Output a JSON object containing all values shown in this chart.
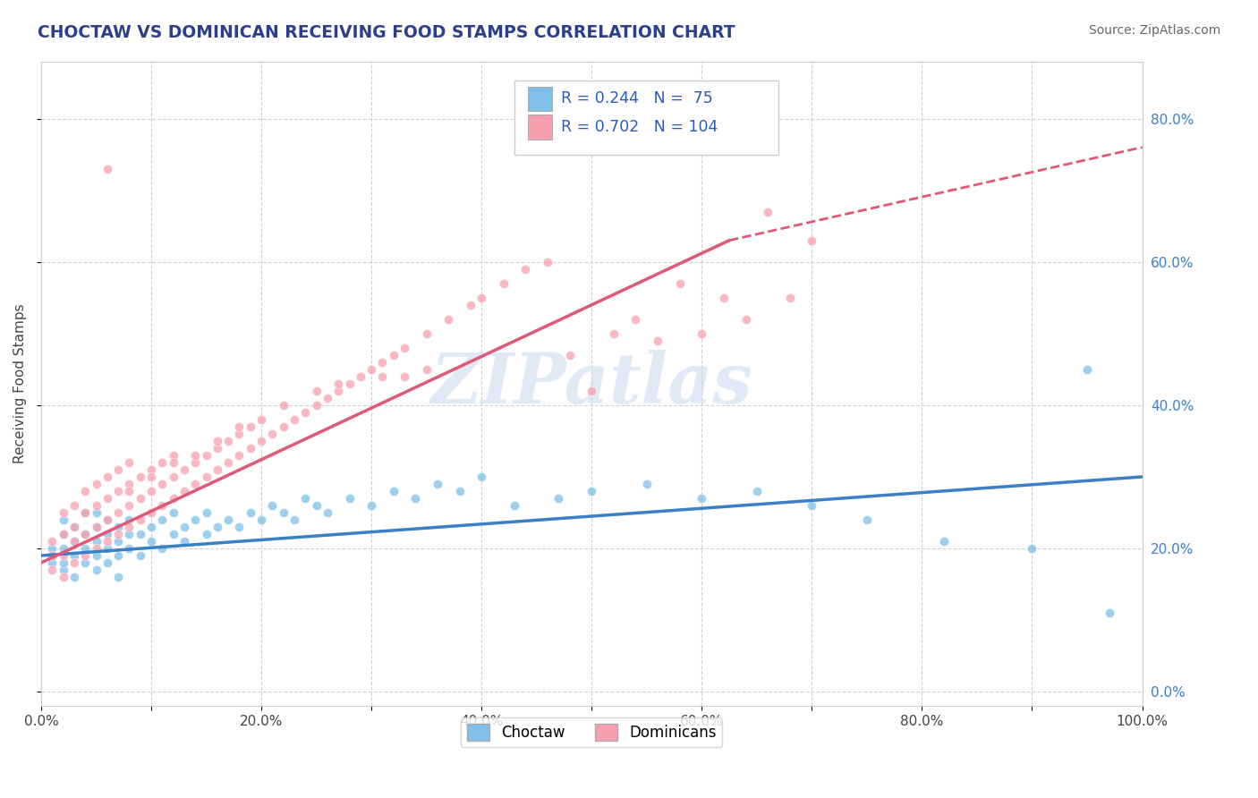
{
  "title": "CHOCTAW VS DOMINICAN RECEIVING FOOD STAMPS CORRELATION CHART",
  "source": "Source: ZipAtlas.com",
  "ylabel": "Receiving Food Stamps",
  "xlim": [
    0,
    1.0
  ],
  "ylim": [
    -0.02,
    0.88
  ],
  "xticks": [
    0.0,
    0.1,
    0.2,
    0.3,
    0.4,
    0.5,
    0.6,
    0.7,
    0.8,
    0.9,
    1.0
  ],
  "yticks": [
    0.0,
    0.2,
    0.4,
    0.6,
    0.8
  ],
  "xtick_labels": [
    "0.0%",
    "",
    "20.0%",
    "",
    "40.0%",
    "",
    "60.0%",
    "",
    "80.0%",
    "",
    "100.0%"
  ],
  "ytick_labels_right": [
    "0.0%",
    "20.0%",
    "40.0%",
    "60.0%",
    "80.0%"
  ],
  "choctaw_color": "#7fbfea",
  "dominican_color": "#f9a0b0",
  "choctaw_line_color": "#3b7fc4",
  "dominican_line_color": "#e05878",
  "dashed_line_color": "#e05878",
  "title_color": "#2c3e8c",
  "source_color": "#666666",
  "watermark_text": "ZIPatlas",
  "grid_color": "#cccccc",
  "choctaw_trendline": [
    0.0,
    1.0,
    0.19,
    0.3
  ],
  "dominican_trendline_solid": [
    0.0,
    0.625,
    0.18,
    0.63
  ],
  "dominican_trendline_dash": [
    0.625,
    1.0,
    0.63,
    0.76
  ],
  "choctaw_x": [
    0.01,
    0.01,
    0.01,
    0.02,
    0.02,
    0.02,
    0.02,
    0.02,
    0.03,
    0.03,
    0.03,
    0.03,
    0.04,
    0.04,
    0.04,
    0.04,
    0.05,
    0.05,
    0.05,
    0.05,
    0.05,
    0.06,
    0.06,
    0.06,
    0.06,
    0.07,
    0.07,
    0.07,
    0.07,
    0.08,
    0.08,
    0.08,
    0.09,
    0.09,
    0.1,
    0.1,
    0.11,
    0.11,
    0.12,
    0.12,
    0.13,
    0.13,
    0.14,
    0.15,
    0.15,
    0.16,
    0.17,
    0.18,
    0.19,
    0.2,
    0.21,
    0.22,
    0.23,
    0.24,
    0.25,
    0.26,
    0.28,
    0.3,
    0.32,
    0.34,
    0.36,
    0.38,
    0.4,
    0.43,
    0.47,
    0.5,
    0.55,
    0.6,
    0.65,
    0.7,
    0.75,
    0.82,
    0.9,
    0.95,
    0.97
  ],
  "choctaw_y": [
    0.18,
    0.19,
    0.2,
    0.17,
    0.2,
    0.22,
    0.24,
    0.18,
    0.19,
    0.21,
    0.23,
    0.16,
    0.2,
    0.22,
    0.18,
    0.25,
    0.19,
    0.21,
    0.23,
    0.17,
    0.25,
    0.2,
    0.22,
    0.18,
    0.24,
    0.21,
    0.19,
    0.23,
    0.16,
    0.22,
    0.2,
    0.24,
    0.19,
    0.22,
    0.21,
    0.23,
    0.2,
    0.24,
    0.22,
    0.25,
    0.21,
    0.23,
    0.24,
    0.22,
    0.25,
    0.23,
    0.24,
    0.23,
    0.25,
    0.24,
    0.26,
    0.25,
    0.24,
    0.27,
    0.26,
    0.25,
    0.27,
    0.26,
    0.28,
    0.27,
    0.29,
    0.28,
    0.3,
    0.26,
    0.27,
    0.28,
    0.29,
    0.27,
    0.28,
    0.26,
    0.24,
    0.21,
    0.2,
    0.45,
    0.11
  ],
  "dominican_x": [
    0.01,
    0.01,
    0.01,
    0.02,
    0.02,
    0.02,
    0.02,
    0.03,
    0.03,
    0.03,
    0.03,
    0.04,
    0.04,
    0.04,
    0.04,
    0.05,
    0.05,
    0.05,
    0.05,
    0.06,
    0.06,
    0.06,
    0.06,
    0.07,
    0.07,
    0.07,
    0.07,
    0.08,
    0.08,
    0.08,
    0.08,
    0.09,
    0.09,
    0.09,
    0.1,
    0.1,
    0.1,
    0.11,
    0.11,
    0.11,
    0.12,
    0.12,
    0.12,
    0.13,
    0.13,
    0.14,
    0.14,
    0.15,
    0.15,
    0.16,
    0.16,
    0.17,
    0.17,
    0.18,
    0.18,
    0.19,
    0.19,
    0.2,
    0.2,
    0.21,
    0.22,
    0.23,
    0.24,
    0.25,
    0.26,
    0.27,
    0.28,
    0.29,
    0.3,
    0.31,
    0.32,
    0.33,
    0.35,
    0.37,
    0.39,
    0.4,
    0.42,
    0.44,
    0.46,
    0.48,
    0.5,
    0.52,
    0.54,
    0.56,
    0.58,
    0.6,
    0.62,
    0.64,
    0.66,
    0.68,
    0.7,
    0.35,
    0.33,
    0.31,
    0.27,
    0.25,
    0.22,
    0.18,
    0.16,
    0.14,
    0.12,
    0.1,
    0.08,
    0.06
  ],
  "dominican_y": [
    0.17,
    0.19,
    0.21,
    0.16,
    0.19,
    0.22,
    0.25,
    0.18,
    0.21,
    0.23,
    0.26,
    0.19,
    0.22,
    0.25,
    0.28,
    0.2,
    0.23,
    0.26,
    0.29,
    0.21,
    0.24,
    0.27,
    0.3,
    0.22,
    0.25,
    0.28,
    0.31,
    0.23,
    0.26,
    0.29,
    0.32,
    0.24,
    0.27,
    0.3,
    0.25,
    0.28,
    0.31,
    0.26,
    0.29,
    0.32,
    0.27,
    0.3,
    0.33,
    0.28,
    0.31,
    0.29,
    0.32,
    0.3,
    0.33,
    0.31,
    0.34,
    0.32,
    0.35,
    0.33,
    0.36,
    0.34,
    0.37,
    0.35,
    0.38,
    0.36,
    0.37,
    0.38,
    0.39,
    0.4,
    0.41,
    0.42,
    0.43,
    0.44,
    0.45,
    0.46,
    0.47,
    0.48,
    0.5,
    0.52,
    0.54,
    0.55,
    0.57,
    0.59,
    0.6,
    0.47,
    0.42,
    0.5,
    0.52,
    0.49,
    0.57,
    0.5,
    0.55,
    0.52,
    0.67,
    0.55,
    0.63,
    0.45,
    0.44,
    0.44,
    0.43,
    0.42,
    0.4,
    0.37,
    0.35,
    0.33,
    0.32,
    0.3,
    0.28,
    0.73
  ]
}
